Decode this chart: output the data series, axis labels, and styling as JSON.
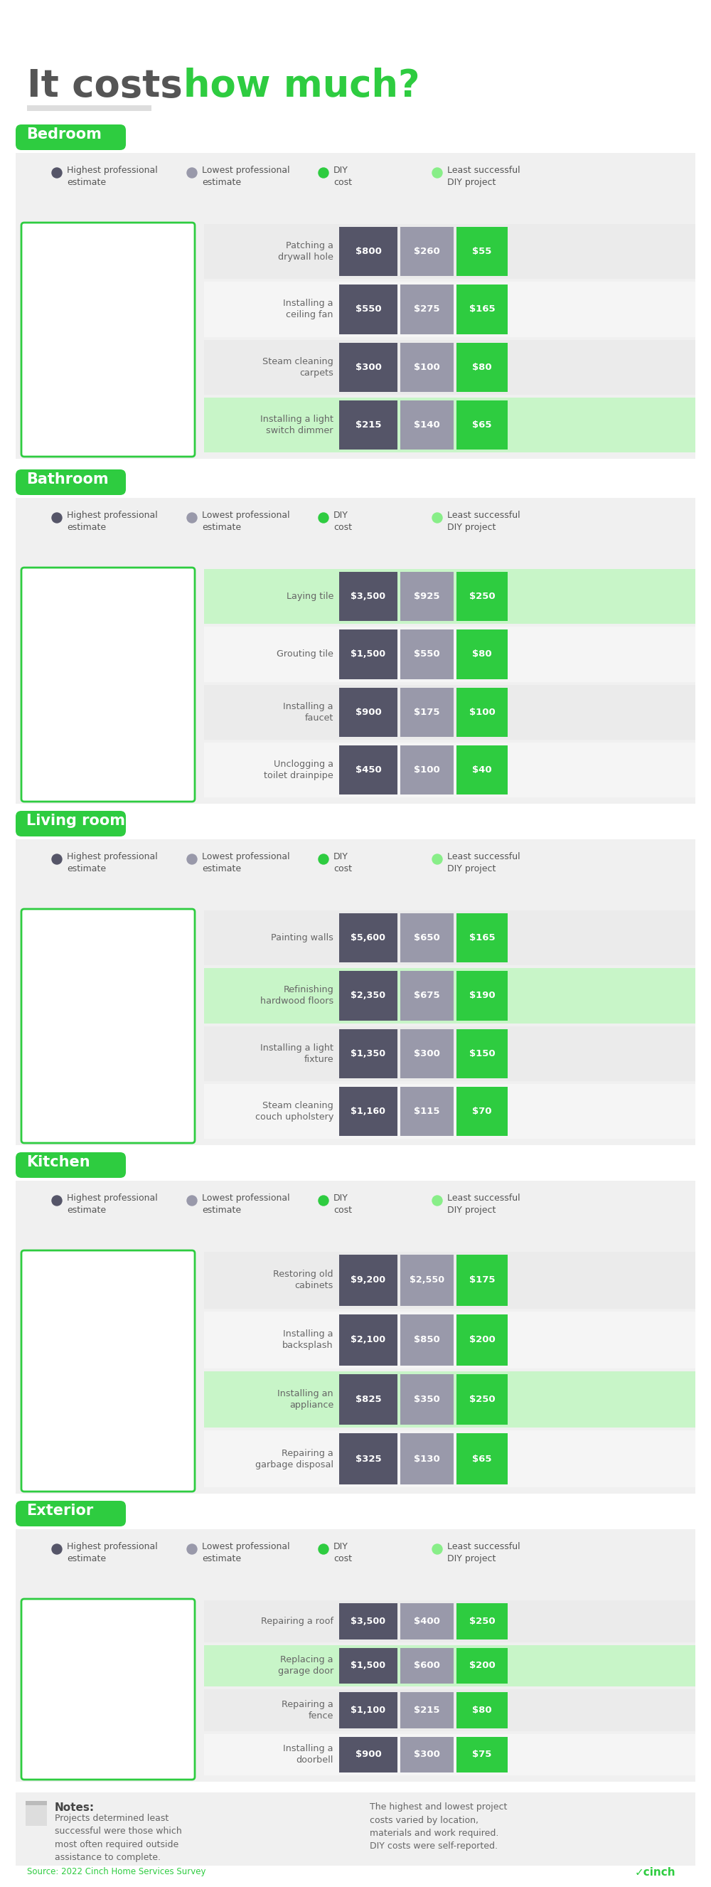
{
  "title_gray": "It costs ",
  "title_green": "how much?",
  "bg_color": "#ffffff",
  "green": "#2ecc40",
  "light_green": "#88ee88",
  "bar_dark": "#555568",
  "bar_mid": "#9999aa",
  "bar_green": "#2ecc40",
  "section_header_bg": "#2ecc40",
  "row_bg_alt": "#ebebeb",
  "row_bg_norm": "#f5f5f5",
  "row_bg_highlight": "#c8f5c8",
  "sections": [
    {
      "name": "Bedroom",
      "rows": [
        {
          "label": "Patching a\ndrywall hole",
          "vals": [
            800,
            260,
            55
          ],
          "highlight": false
        },
        {
          "label": "Installing a\nceiling fan",
          "vals": [
            550,
            275,
            165
          ],
          "highlight": false
        },
        {
          "label": "Steam cleaning\ncarpets",
          "vals": [
            300,
            100,
            80
          ],
          "highlight": false
        },
        {
          "label": "Installing a light\nswitch dimmer",
          "vals": [
            215,
            140,
            65
          ],
          "highlight": true
        }
      ]
    },
    {
      "name": "Bathroom",
      "rows": [
        {
          "label": "Laying tile",
          "vals": [
            3500,
            925,
            250
          ],
          "highlight": true
        },
        {
          "label": "Grouting tile",
          "vals": [
            1500,
            550,
            80
          ],
          "highlight": false
        },
        {
          "label": "Installing a\nfaucet",
          "vals": [
            900,
            175,
            100
          ],
          "highlight": false
        },
        {
          "label": "Unclogging a\ntoilet drainpipe",
          "vals": [
            450,
            100,
            40
          ],
          "highlight": false
        }
      ]
    },
    {
      "name": "Living room",
      "rows": [
        {
          "label": "Painting walls",
          "vals": [
            5600,
            650,
            165
          ],
          "highlight": false
        },
        {
          "label": "Refinishing\nhardwood floors",
          "vals": [
            2350,
            675,
            190
          ],
          "highlight": true
        },
        {
          "label": "Installing a light\nfixture",
          "vals": [
            1350,
            300,
            150
          ],
          "highlight": false
        },
        {
          "label": "Steam cleaning\ncouch upholstery",
          "vals": [
            1160,
            115,
            70
          ],
          "highlight": false
        }
      ]
    },
    {
      "name": "Kitchen",
      "rows": [
        {
          "label": "Restoring old\ncabinets",
          "vals": [
            9200,
            2550,
            175
          ],
          "highlight": false
        },
        {
          "label": "Installing a\nbacksplash",
          "vals": [
            2100,
            850,
            200
          ],
          "highlight": false
        },
        {
          "label": "Installing an\nappliance",
          "vals": [
            825,
            350,
            250
          ],
          "highlight": true
        },
        {
          "label": "Repairing a\ngarbage disposal",
          "vals": [
            325,
            130,
            65
          ],
          "highlight": false
        }
      ]
    },
    {
      "name": "Exterior",
      "rows": [
        {
          "label": "Repairing a roof",
          "vals": [
            3500,
            400,
            250
          ],
          "highlight": false
        },
        {
          "label": "Replacing a\ngarage door",
          "vals": [
            1500,
            600,
            200
          ],
          "highlight": true
        },
        {
          "label": "Repairing a\nfence",
          "vals": [
            1100,
            215,
            80
          ],
          "highlight": false
        },
        {
          "label": "Installing a\ndoorbell",
          "vals": [
            900,
            300,
            75
          ],
          "highlight": false
        }
      ]
    }
  ],
  "source_text": "Source: 2022 Cinch Home Services Survey"
}
